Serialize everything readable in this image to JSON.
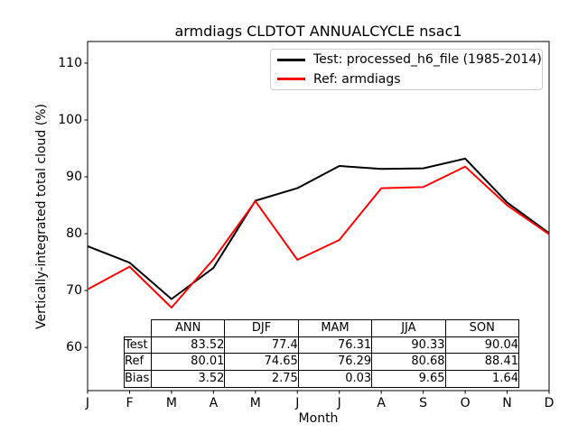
{
  "chart_data": {
    "type": "line",
    "title": "armdiags CLDTOT ANNUALCYCLE nsac1",
    "xlabel": "Month",
    "ylabel": "Vertically-integrated total cloud (%)",
    "x_tick_labels": [
      "J",
      "F",
      "M",
      "A",
      "M",
      "J",
      "J",
      "A",
      "S",
      "O",
      "N",
      "D"
    ],
    "y_ticks": [
      60,
      70,
      80,
      90,
      100,
      110
    ],
    "ylim": [
      52.4,
      113.8
    ],
    "grid": false,
    "legend_position": "upper right",
    "series": [
      {
        "name": "Test: processed_h6_file (1985-2014)",
        "color": "#000000",
        "values": [
          77.8,
          74.9,
          68.5,
          74.0,
          85.8,
          88.0,
          91.9,
          91.4,
          91.5,
          93.2,
          85.5,
          80.1
        ]
      },
      {
        "name": "Ref: armdiags",
        "color": "#ff0000",
        "values": [
          70.2,
          74.2,
          67.0,
          75.5,
          85.7,
          75.4,
          78.9,
          88.0,
          88.2,
          91.8,
          85.0,
          79.9
        ]
      }
    ]
  },
  "table": {
    "col_headers": [
      "ANN",
      "DJF",
      "MAM",
      "JJA",
      "SON"
    ],
    "rows": [
      {
        "label": "Test",
        "values": [
          "83.52",
          "77.4",
          "76.31",
          "90.33",
          "90.04"
        ]
      },
      {
        "label": "Ref",
        "values": [
          "80.01",
          "74.65",
          "76.29",
          "80.68",
          "88.41"
        ]
      },
      {
        "label": "Bias",
        "values": [
          "3.52",
          "2.75",
          "0.03",
          "9.65",
          "1.64"
        ]
      }
    ]
  }
}
